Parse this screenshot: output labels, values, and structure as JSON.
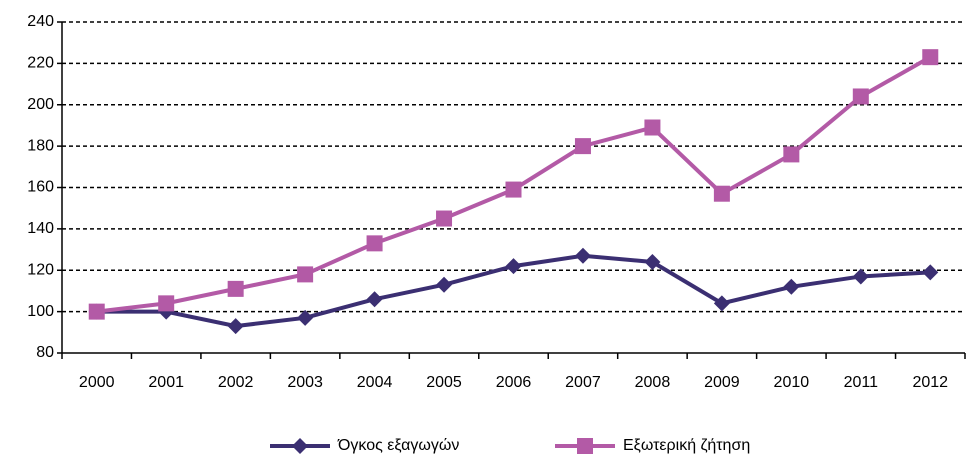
{
  "chart_data": {
    "type": "line",
    "categories": [
      "2000",
      "2001",
      "2002",
      "2003",
      "2004",
      "2005",
      "2006",
      "2007",
      "2008",
      "2009",
      "2010",
      "2011",
      "2012"
    ],
    "series": [
      {
        "name": "Όγκος εξαγωγών",
        "color": "#3b2f72",
        "marker": "diamond",
        "values": [
          100,
          100,
          93,
          97,
          106,
          113,
          122,
          127,
          124,
          104,
          112,
          117,
          119
        ]
      },
      {
        "name": "Εξωτερική ζήτηση",
        "color": "#b35aa6",
        "marker": "square",
        "values": [
          100,
          104,
          111,
          118,
          133,
          145,
          159,
          180,
          189,
          157,
          176,
          204,
          223
        ]
      }
    ],
    "ylim": [
      80,
      240
    ],
    "yticks": [
      80,
      100,
      120,
      140,
      160,
      180,
      200,
      220,
      240
    ],
    "grid": true,
    "legend": "bottom"
  }
}
